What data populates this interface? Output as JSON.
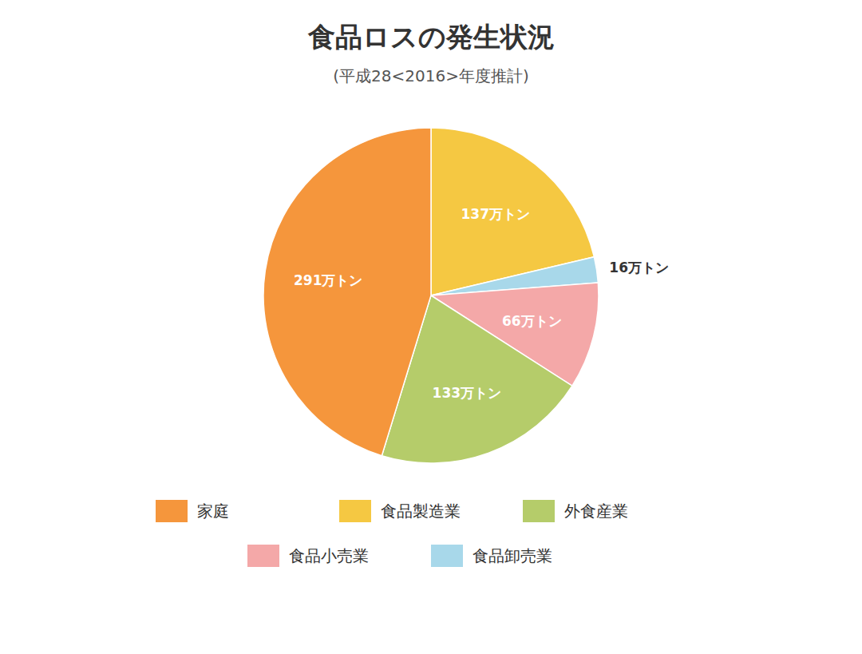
{
  "chart_data": {
    "type": "pie",
    "title": "食品ロスの発生状況",
    "subtitle": "(平成28<2016>年度推計)",
    "categories": [
      "食品製造業",
      "食品卸売業",
      "食品小売業",
      "外食産業",
      "家庭"
    ],
    "values": [
      137,
      16,
      66,
      133,
      291
    ],
    "value_labels": [
      "137万トン",
      "16万トン",
      "66万トン",
      "133万トン",
      "291万トン"
    ],
    "colors": [
      "#F5C842",
      "#A8D8EA",
      "#F4A8A8",
      "#B5CC6A",
      "#F5963C"
    ],
    "data_labels": true,
    "legend": "bottom"
  }
}
